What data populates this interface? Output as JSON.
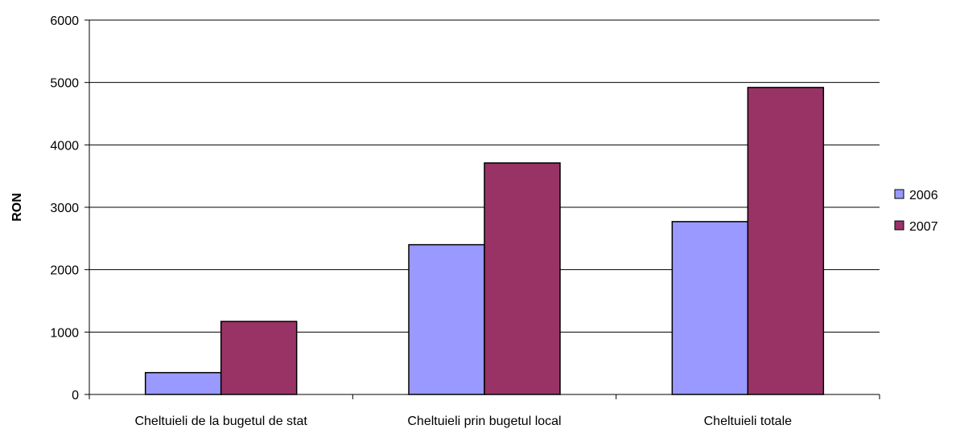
{
  "chart_data": {
    "type": "bar",
    "title": "",
    "xlabel": "",
    "ylabel": "RON",
    "ylim": [
      0,
      6000
    ],
    "yticks": [
      0,
      1000,
      2000,
      3000,
      4000,
      5000,
      6000
    ],
    "grid": true,
    "legend_position": "right",
    "categories": [
      "Cheltuieli de la bugetul de stat",
      "Cheltuieli prin bugetul local",
      "Cheltuieli totale"
    ],
    "series": [
      {
        "name": "2006",
        "color": "#9999FF",
        "values": [
          350,
          2400,
          2770
        ]
      },
      {
        "name": "2007",
        "color": "#993366",
        "values": [
          1170,
          3710,
          4920
        ]
      }
    ]
  }
}
